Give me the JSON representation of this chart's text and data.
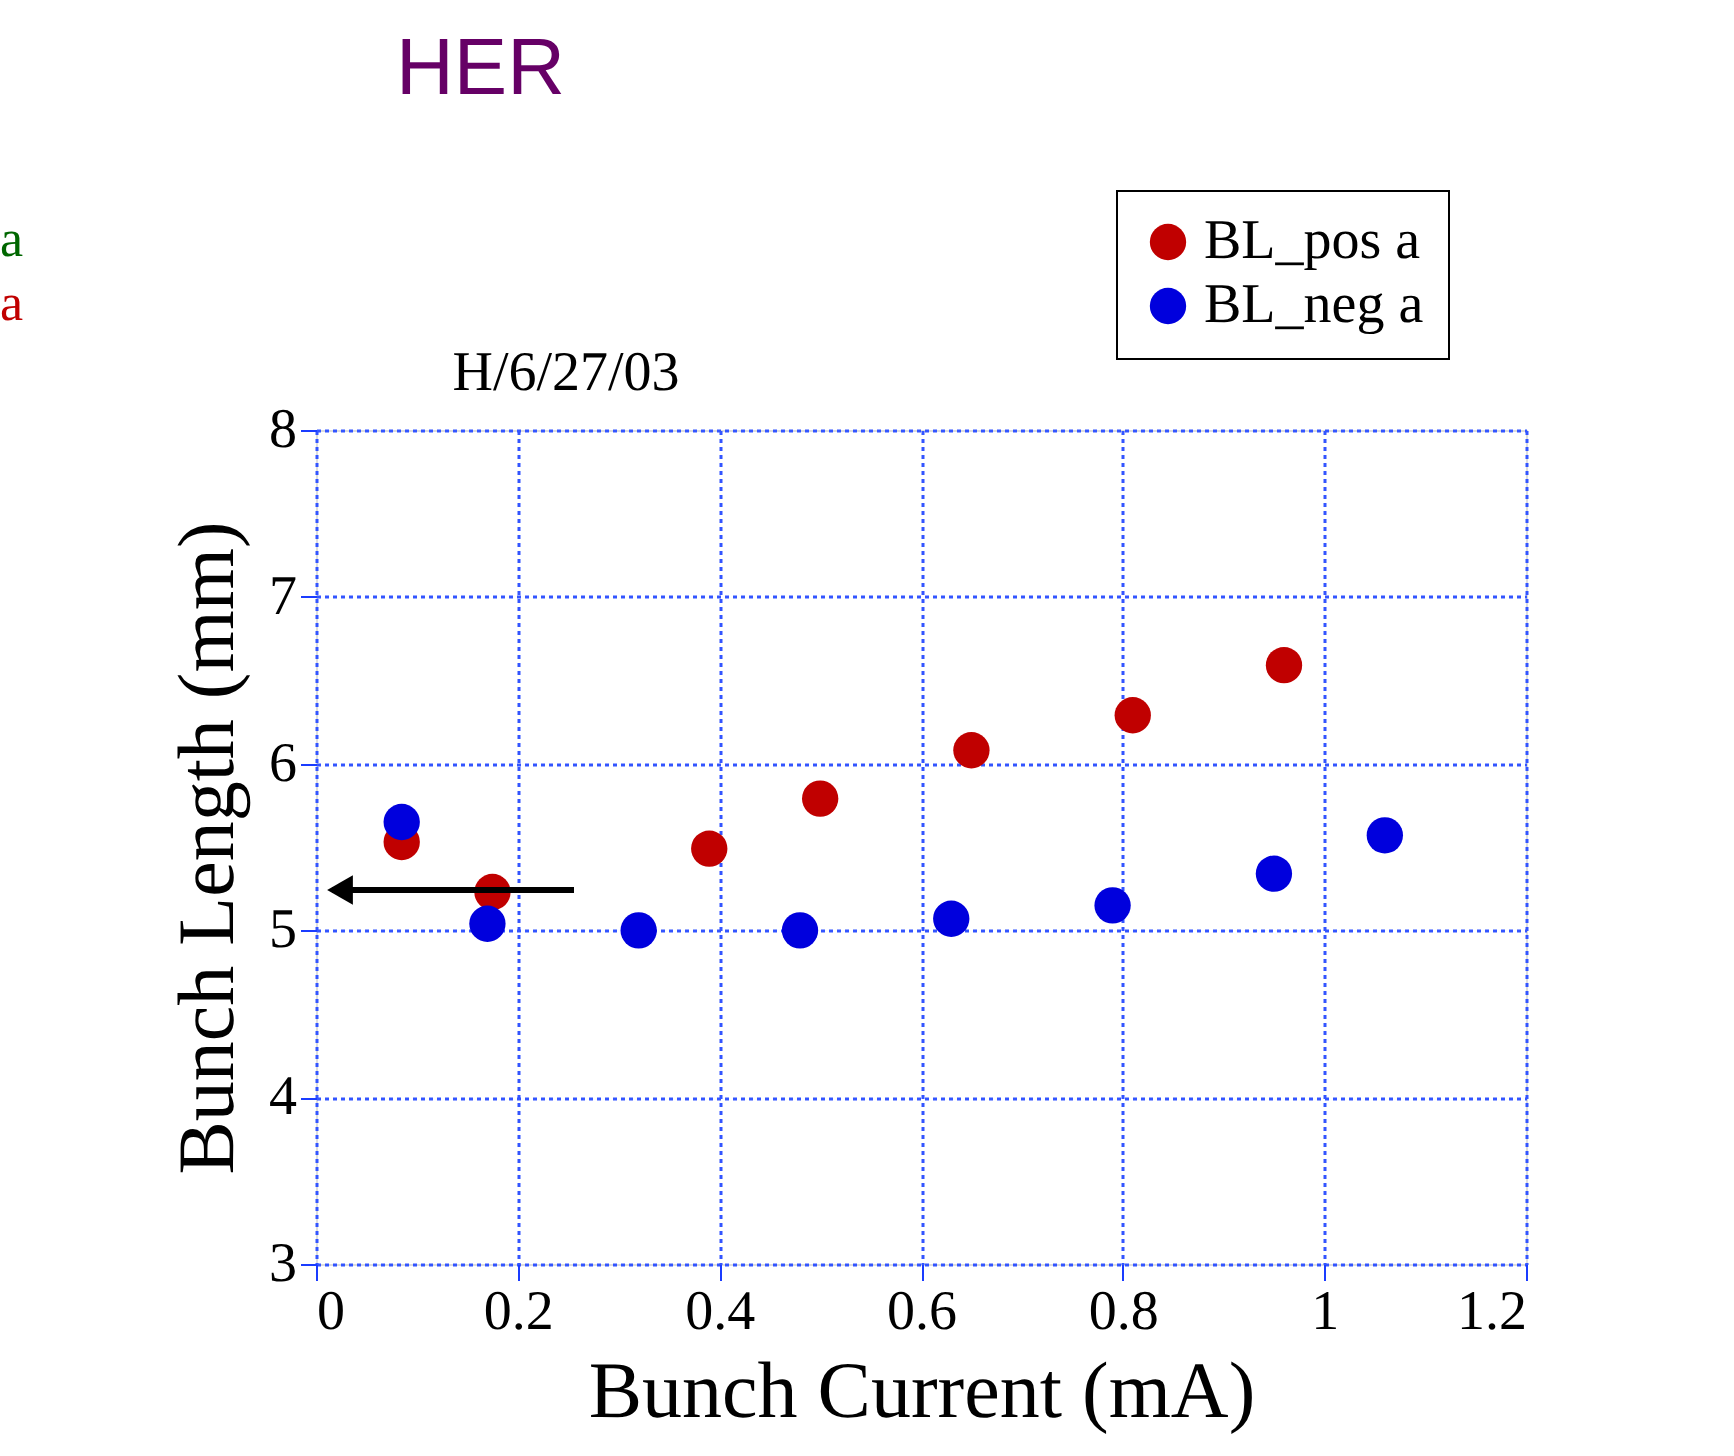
{
  "chart_data": {
    "type": "scatter",
    "title": "HER",
    "subtitle": "H/6/27/03",
    "xlabel": "Bunch Current (mA)",
    "ylabel": "Bunch Length (mm)",
    "xlim": [
      0,
      1.2
    ],
    "xticks": [
      0,
      0.2,
      0.4,
      0.6,
      0.8,
      1,
      1.2
    ],
    "ylim": [
      3,
      8
    ],
    "yticks": [
      3,
      4,
      5,
      6,
      7,
      8
    ],
    "grid": true,
    "legend": "top right",
    "marker": "circle",
    "annotations": [
      "a",
      "a"
    ],
    "series": [
      {
        "name": "BL_pos a",
        "color": "#c00000",
        "x": [
          0.085,
          0.175,
          0.39,
          0.5,
          0.65,
          0.81,
          0.96
        ],
        "values": [
          5.53,
          5.23,
          5.49,
          5.79,
          6.08,
          6.29,
          6.59
        ]
      },
      {
        "name": "BL_neg a",
        "color": "#0000dd",
        "x": [
          0.085,
          0.17,
          0.32,
          0.48,
          0.63,
          0.79,
          0.95,
          1.06
        ],
        "values": [
          5.65,
          5.04,
          5.0,
          5.0,
          5.07,
          5.15,
          5.34,
          5.57
        ]
      }
    ]
  }
}
